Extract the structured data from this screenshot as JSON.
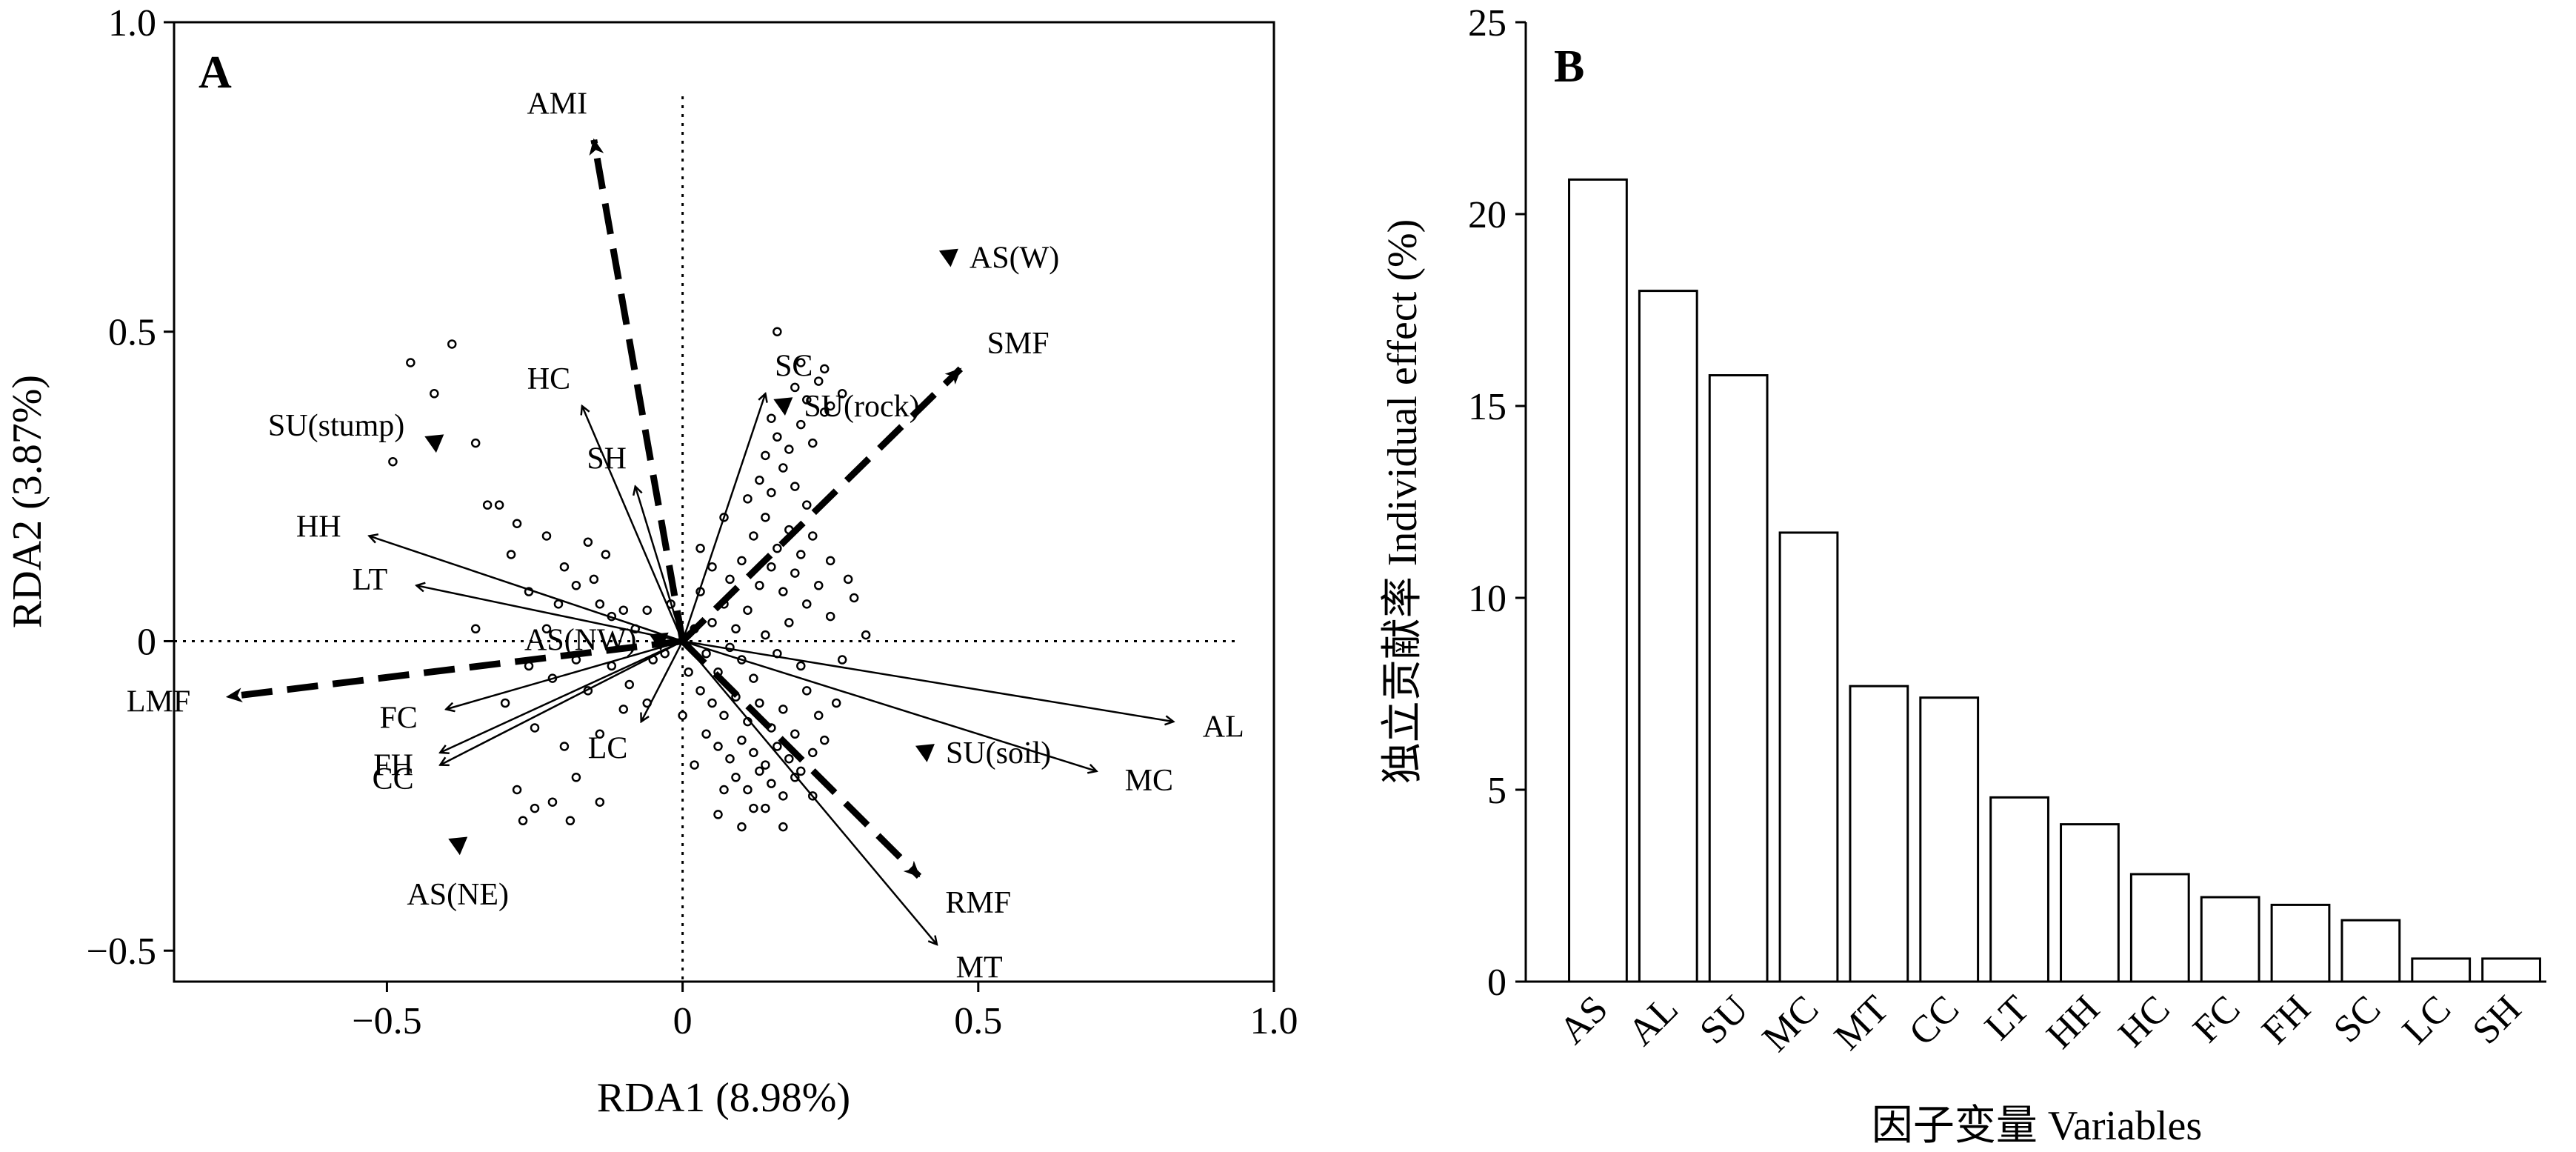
{
  "chart_data": [
    {
      "panel": "A",
      "type": "scatter",
      "xlabel": "RDA1 (8.98%)",
      "ylabel": "RDA2 (3.87%)",
      "xlim": [
        -0.86,
        1.0
      ],
      "ylim": [
        -0.55,
        1.0
      ],
      "xticks": [
        -0.5,
        0,
        0.5,
        1.0
      ],
      "xtick_labels": [
        "−0.5",
        "0",
        "0.5",
        "1.0"
      ],
      "yticks": [
        -0.5,
        0,
        0.5,
        1.0
      ],
      "ytick_labels": [
        "−0.5",
        "0",
        "0.5",
        "1.0"
      ],
      "reference_lines": "dotted lines at x=0 and y=0",
      "solid_arrows": [
        {
          "label": "HC",
          "x": -0.17,
          "y": 0.38
        },
        {
          "label": "SH",
          "x": -0.08,
          "y": 0.25
        },
        {
          "label": "SC",
          "x": 0.14,
          "y": 0.4
        },
        {
          "label": "HH",
          "x": -0.53,
          "y": 0.17
        },
        {
          "label": "LT",
          "x": -0.45,
          "y": 0.09
        },
        {
          "label": "FC",
          "x": -0.4,
          "y": -0.11
        },
        {
          "label": "FH",
          "x": -0.41,
          "y": -0.18
        },
        {
          "label": "CC",
          "x": -0.41,
          "y": -0.2
        },
        {
          "label": "LC",
          "x": -0.07,
          "y": -0.13
        },
        {
          "label": "AL",
          "x": 0.83,
          "y": -0.13
        },
        {
          "label": "MC",
          "x": 0.7,
          "y": -0.21
        },
        {
          "label": "MT",
          "x": 0.43,
          "y": -0.49
        }
      ],
      "dashed_arrows": [
        {
          "label": "AMI",
          "x": -0.15,
          "y": 0.81
        },
        {
          "label": "SMF",
          "x": 0.47,
          "y": 0.44
        },
        {
          "label": "LMF",
          "x": -0.77,
          "y": -0.09
        },
        {
          "label": "RMF",
          "x": 0.4,
          "y": -0.38
        }
      ],
      "centroids": [
        {
          "label": "AS(W)",
          "x": 0.45,
          "y": 0.62
        },
        {
          "label": "SU(stump)",
          "x": -0.42,
          "y": 0.32
        },
        {
          "label": "SU(rock)",
          "x": 0.17,
          "y": 0.38
        },
        {
          "label": "AS(NW)",
          "x": -0.04,
          "y": 0.0
        },
        {
          "label": "SU(soil)",
          "x": 0.41,
          "y": -0.18
        },
        {
          "label": "AS(NE)",
          "x": -0.38,
          "y": -0.33
        }
      ],
      "sites": [
        [
          -0.39,
          0.48
        ],
        [
          -0.46,
          0.45
        ],
        [
          -0.42,
          0.4
        ],
        [
          -0.35,
          0.32
        ],
        [
          -0.49,
          0.29
        ],
        [
          -0.33,
          0.22
        ],
        [
          -0.31,
          0.22
        ],
        [
          -0.28,
          0.19
        ],
        [
          -0.29,
          0.14
        ],
        [
          -0.23,
          0.17
        ],
        [
          -0.16,
          0.16
        ],
        [
          -0.2,
          0.12
        ],
        [
          -0.13,
          0.14
        ],
        [
          -0.26,
          0.08
        ],
        [
          -0.21,
          0.06
        ],
        [
          -0.18,
          0.09
        ],
        [
          -0.15,
          0.1
        ],
        [
          -0.23,
          0.02
        ],
        [
          -0.35,
          0.02
        ],
        [
          -0.14,
          0.06
        ],
        [
          -0.12,
          0.04
        ],
        [
          -0.1,
          0.05
        ],
        [
          -0.08,
          0.02
        ],
        [
          -0.06,
          0.05
        ],
        [
          -0.26,
          -0.04
        ],
        [
          -0.22,
          -0.06
        ],
        [
          -0.18,
          -0.03
        ],
        [
          -0.16,
          -0.08
        ],
        [
          -0.12,
          -0.04
        ],
        [
          -0.09,
          -0.07
        ],
        [
          -0.05,
          -0.03
        ],
        [
          -0.03,
          -0.02
        ],
        [
          -0.3,
          -0.1
        ],
        [
          -0.25,
          -0.14
        ],
        [
          -0.2,
          -0.17
        ],
        [
          -0.14,
          -0.15
        ],
        [
          -0.1,
          -0.11
        ],
        [
          -0.06,
          -0.1
        ],
        [
          -0.18,
          -0.22
        ],
        [
          -0.28,
          -0.24
        ],
        [
          -0.25,
          -0.27
        ],
        [
          -0.22,
          -0.26
        ],
        [
          -0.14,
          -0.26
        ],
        [
          -0.27,
          -0.29
        ],
        [
          -0.19,
          -0.29
        ],
        [
          0.03,
          0.08
        ],
        [
          0.05,
          0.03
        ],
        [
          0.07,
          0.06
        ],
        [
          0.09,
          0.02
        ],
        [
          0.11,
          0.05
        ],
        [
          0.04,
          -0.02
        ],
        [
          0.06,
          -0.05
        ],
        [
          0.08,
          -0.01
        ],
        [
          0.1,
          -0.03
        ],
        [
          0.12,
          -0.06
        ],
        [
          0.14,
          0.01
        ],
        [
          0.16,
          -0.02
        ],
        [
          0.18,
          0.03
        ],
        [
          0.2,
          -0.04
        ],
        [
          0.03,
          -0.08
        ],
        [
          0.05,
          -0.1
        ],
        [
          0.07,
          -0.12
        ],
        [
          0.09,
          -0.09
        ],
        [
          0.11,
          -0.13
        ],
        [
          0.13,
          -0.1
        ],
        [
          0.15,
          -0.14
        ],
        [
          0.17,
          -0.11
        ],
        [
          0.19,
          -0.15
        ],
        [
          0.21,
          -0.08
        ],
        [
          0.23,
          -0.12
        ],
        [
          0.04,
          -0.15
        ],
        [
          0.06,
          -0.17
        ],
        [
          0.08,
          -0.19
        ],
        [
          0.1,
          -0.16
        ],
        [
          0.12,
          -0.18
        ],
        [
          0.14,
          -0.2
        ],
        [
          0.16,
          -0.17
        ],
        [
          0.18,
          -0.19
        ],
        [
          0.2,
          -0.21
        ],
        [
          0.22,
          -0.18
        ],
        [
          0.09,
          -0.22
        ],
        [
          0.11,
          -0.24
        ],
        [
          0.13,
          -0.21
        ],
        [
          0.15,
          -0.23
        ],
        [
          0.17,
          -0.25
        ],
        [
          0.07,
          -0.24
        ],
        [
          0.12,
          -0.27
        ],
        [
          0.19,
          -0.22
        ],
        [
          0.24,
          -0.16
        ],
        [
          0.26,
          -0.1
        ],
        [
          0.05,
          0.12
        ],
        [
          0.08,
          0.1
        ],
        [
          0.1,
          0.13
        ],
        [
          0.13,
          0.09
        ],
        [
          0.15,
          0.12
        ],
        [
          0.17,
          0.08
        ],
        [
          0.19,
          0.11
        ],
        [
          0.21,
          0.06
        ],
        [
          0.23,
          0.09
        ],
        [
          0.25,
          0.04
        ],
        [
          0.12,
          0.17
        ],
        [
          0.14,
          0.2
        ],
        [
          0.16,
          0.15
        ],
        [
          0.18,
          0.18
        ],
        [
          0.2,
          0.14
        ],
        [
          0.22,
          0.17
        ],
        [
          0.11,
          0.23
        ],
        [
          0.13,
          0.26
        ],
        [
          0.15,
          0.24
        ],
        [
          0.17,
          0.28
        ],
        [
          0.19,
          0.25
        ],
        [
          0.21,
          0.22
        ],
        [
          0.14,
          0.3
        ],
        [
          0.16,
          0.33
        ],
        [
          0.18,
          0.31
        ],
        [
          0.2,
          0.35
        ],
        [
          0.22,
          0.32
        ],
        [
          0.24,
          0.37
        ],
        [
          0.15,
          0.36
        ],
        [
          0.19,
          0.41
        ],
        [
          0.21,
          0.39
        ],
        [
          0.23,
          0.42
        ],
        [
          0.25,
          0.38
        ],
        [
          0.27,
          0.4
        ],
        [
          0.16,
          0.5
        ],
        [
          0.2,
          0.45
        ],
        [
          0.24,
          0.44
        ],
        [
          0.29,
          0.07
        ],
        [
          0.31,
          0.01
        ],
        [
          0.27,
          -0.03
        ],
        [
          0.02,
          0.02
        ],
        [
          0.01,
          -0.05
        ],
        [
          -0.02,
          0.06
        ],
        [
          0.03,
          0.15
        ],
        [
          0.07,
          0.2
        ],
        [
          0.06,
          -0.28
        ],
        [
          0.1,
          -0.3
        ],
        [
          0.14,
          -0.27
        ],
        [
          0.02,
          -0.2
        ],
        [
          0.0,
          -0.12
        ],
        [
          0.25,
          0.13
        ],
        [
          0.28,
          0.1
        ],
        [
          0.22,
          -0.25
        ],
        [
          0.17,
          -0.3
        ]
      ]
    },
    {
      "panel": "B",
      "type": "bar",
      "xlabel": "因子变量 Variables",
      "ylabel": "独立贡献率 Individual effect (%)",
      "ylim": [
        0,
        25
      ],
      "yticks": [
        0,
        5,
        10,
        15,
        20,
        25
      ],
      "categories": [
        "AS",
        "AL",
        "SU",
        "MC",
        "MT",
        "CC",
        "LT",
        "HH",
        "HC",
        "FC",
        "FH",
        "SC",
        "LC",
        "SH"
      ],
      "values": [
        20.9,
        18.0,
        15.8,
        11.7,
        7.7,
        7.4,
        4.8,
        4.1,
        2.8,
        2.2,
        2.0,
        1.6,
        0.6,
        0.6
      ]
    }
  ]
}
